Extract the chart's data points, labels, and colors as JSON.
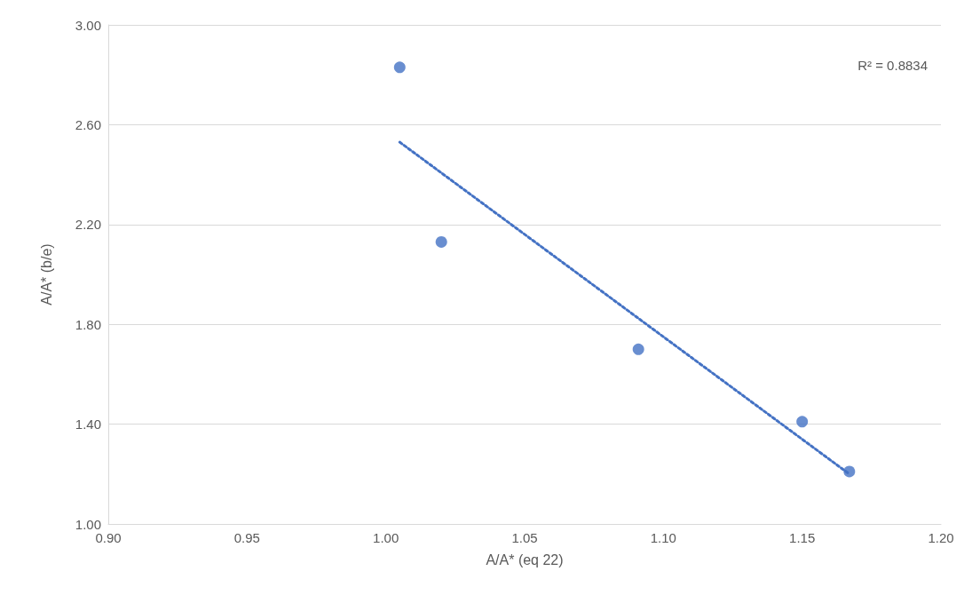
{
  "chart_data": {
    "type": "scatter",
    "xlabel": "A/A* (eq 22)",
    "ylabel": "A/A* (b/e)",
    "xlim": [
      0.9,
      1.2
    ],
    "xticks": [
      {
        "value": 0.9,
        "label": "0.90"
      },
      {
        "value": 0.95,
        "label": "0.95"
      },
      {
        "value": 1.0,
        "label": "1.00"
      },
      {
        "value": 1.05,
        "label": "1.05"
      },
      {
        "value": 1.1,
        "label": "1.10"
      },
      {
        "value": 1.15,
        "label": "1.15"
      },
      {
        "value": 1.2,
        "label": "1.20"
      }
    ],
    "ylim": [
      1.0,
      3.0
    ],
    "yticks": [
      {
        "value": 1.0,
        "label": "1.00"
      },
      {
        "value": 1.4,
        "label": "1.40"
      },
      {
        "value": 1.8,
        "label": "1.80"
      },
      {
        "value": 2.2,
        "label": "2.20"
      },
      {
        "value": 2.6,
        "label": "2.60"
      },
      {
        "value": 3.0,
        "label": "3.00"
      }
    ],
    "grid": "y",
    "series": [
      {
        "color": "#4472c4",
        "marker": "circle",
        "x": [
          1.005,
          1.02,
          1.091,
          1.15,
          1.167
        ],
        "values": [
          2.83,
          2.13,
          1.7,
          1.41,
          1.21
        ]
      },
      {
        "type": "line",
        "color": "#4472c4",
        "marker": "none",
        "line_style": "dotted",
        "x": [
          1.005,
          1.167
        ],
        "values": [
          2.53,
          1.2
        ]
      }
    ],
    "annotations": [
      "R² = 0.8834"
    ]
  }
}
